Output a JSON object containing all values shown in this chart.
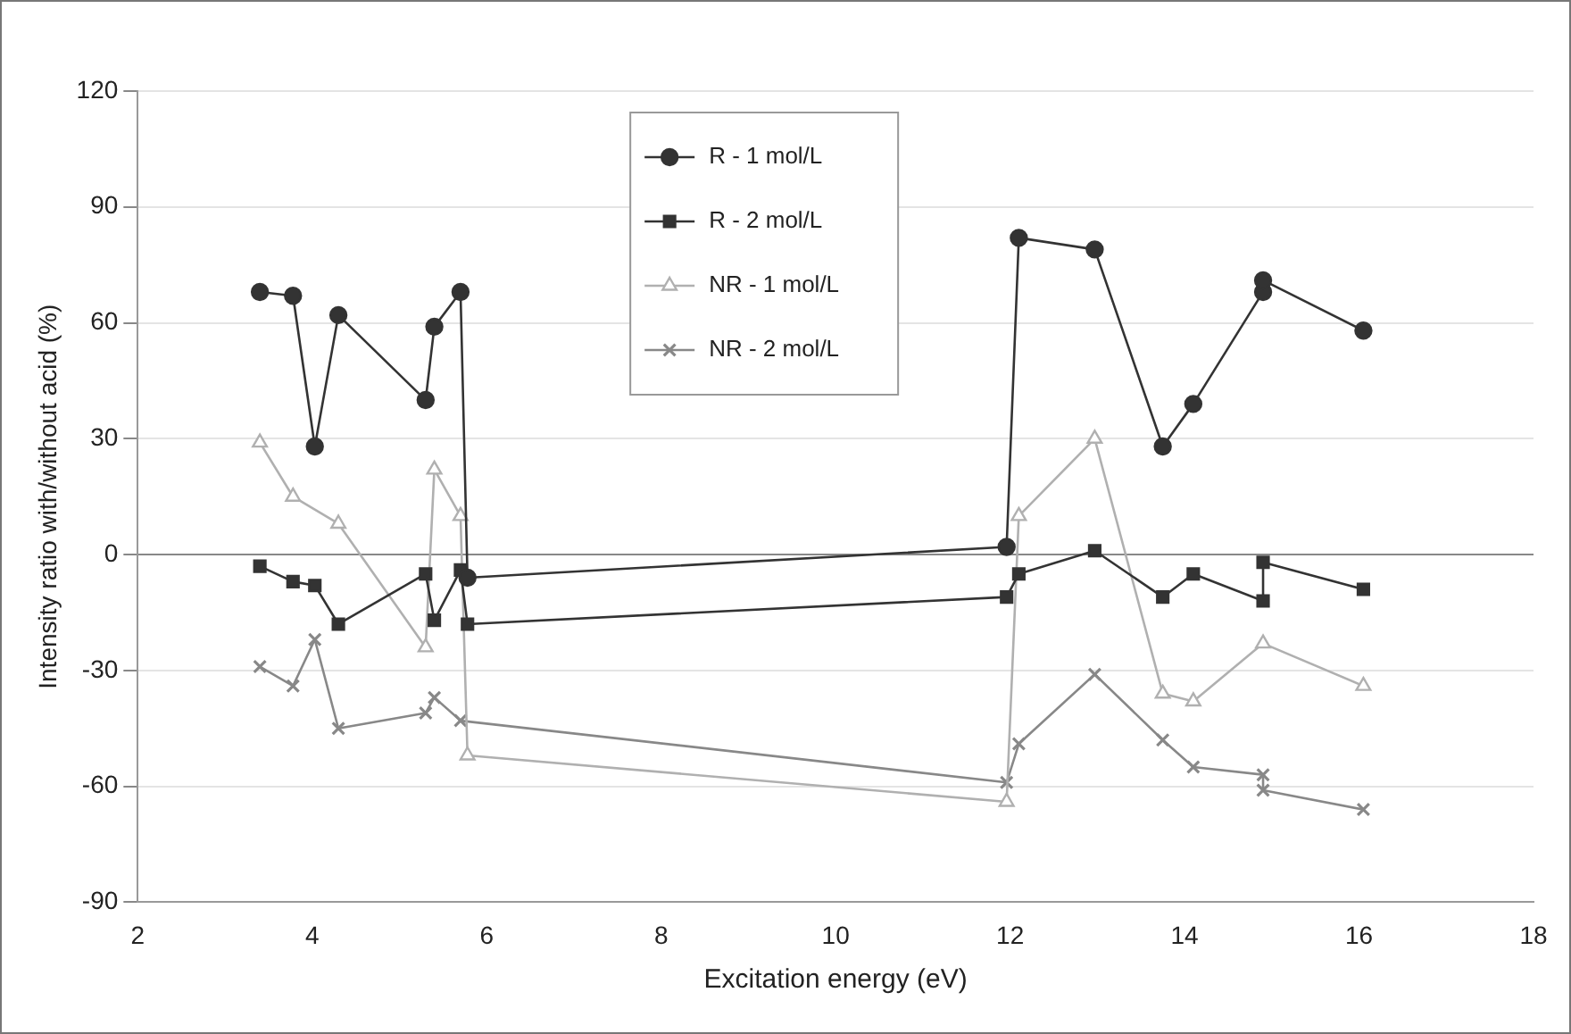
{
  "chart_data": {
    "type": "line",
    "xlabel": "Excitation energy (eV)",
    "ylabel": "Intensity ratio with/without acid (%)",
    "xlim": [
      2,
      18
    ],
    "xticks": [
      2,
      4,
      6,
      8,
      10,
      12,
      14,
      16,
      18
    ],
    "ylim": [
      -90,
      120
    ],
    "yticks": [
      -90,
      -60,
      -30,
      0,
      30,
      60,
      90,
      120
    ],
    "grid": "y",
    "legend": "top",
    "series": [
      {
        "name": "R - 1 mol/L",
        "color": "#333333",
        "marker": "circle",
        "x": [
          3.4,
          3.78,
          4.03,
          4.3,
          5.3,
          5.4,
          5.7,
          5.78,
          11.96,
          12.1,
          12.97,
          13.75,
          14.1,
          14.9,
          14.9,
          16.05
        ],
        "values": [
          68,
          67,
          28,
          62,
          40,
          59,
          68,
          -6,
          2,
          82,
          79,
          28,
          39,
          68,
          71,
          58
        ]
      },
      {
        "name": "R - 2 mol/L",
        "color": "#333333",
        "marker": "square",
        "x": [
          3.4,
          3.78,
          4.03,
          4.3,
          5.3,
          5.4,
          5.7,
          5.78,
          11.96,
          12.1,
          12.97,
          13.75,
          14.1,
          14.9,
          14.9,
          16.05
        ],
        "values": [
          -3,
          -7,
          -8,
          -18,
          -5,
          -17,
          -4,
          -18,
          -11,
          -5,
          1,
          -11,
          -5,
          -12,
          -2,
          -9
        ]
      },
      {
        "name": "NR - 1 mol/L",
        "color": "#b0b0b0",
        "marker": "triangle",
        "x": [
          3.4,
          3.78,
          4.3,
          5.3,
          5.4,
          5.7,
          5.78,
          11.96,
          12.1,
          12.97,
          13.75,
          14.1,
          14.9,
          16.05
        ],
        "values": [
          29,
          15,
          8,
          -24,
          22,
          10,
          -52,
          -64,
          10,
          30,
          -36,
          -38,
          -23,
          -34
        ]
      },
      {
        "name": "NR - 2 mol/L",
        "color": "#888888",
        "marker": "cross",
        "x": [
          3.4,
          3.78,
          4.03,
          4.3,
          5.3,
          5.4,
          5.7,
          11.96,
          12.1,
          12.97,
          13.75,
          14.1,
          14.9,
          14.9,
          16.05
        ],
        "values": [
          -29,
          -34,
          -22,
          -45,
          -41,
          -37,
          -43,
          -59,
          -49,
          -31,
          -48,
          -55,
          -57,
          -61,
          -66
        ]
      }
    ]
  }
}
